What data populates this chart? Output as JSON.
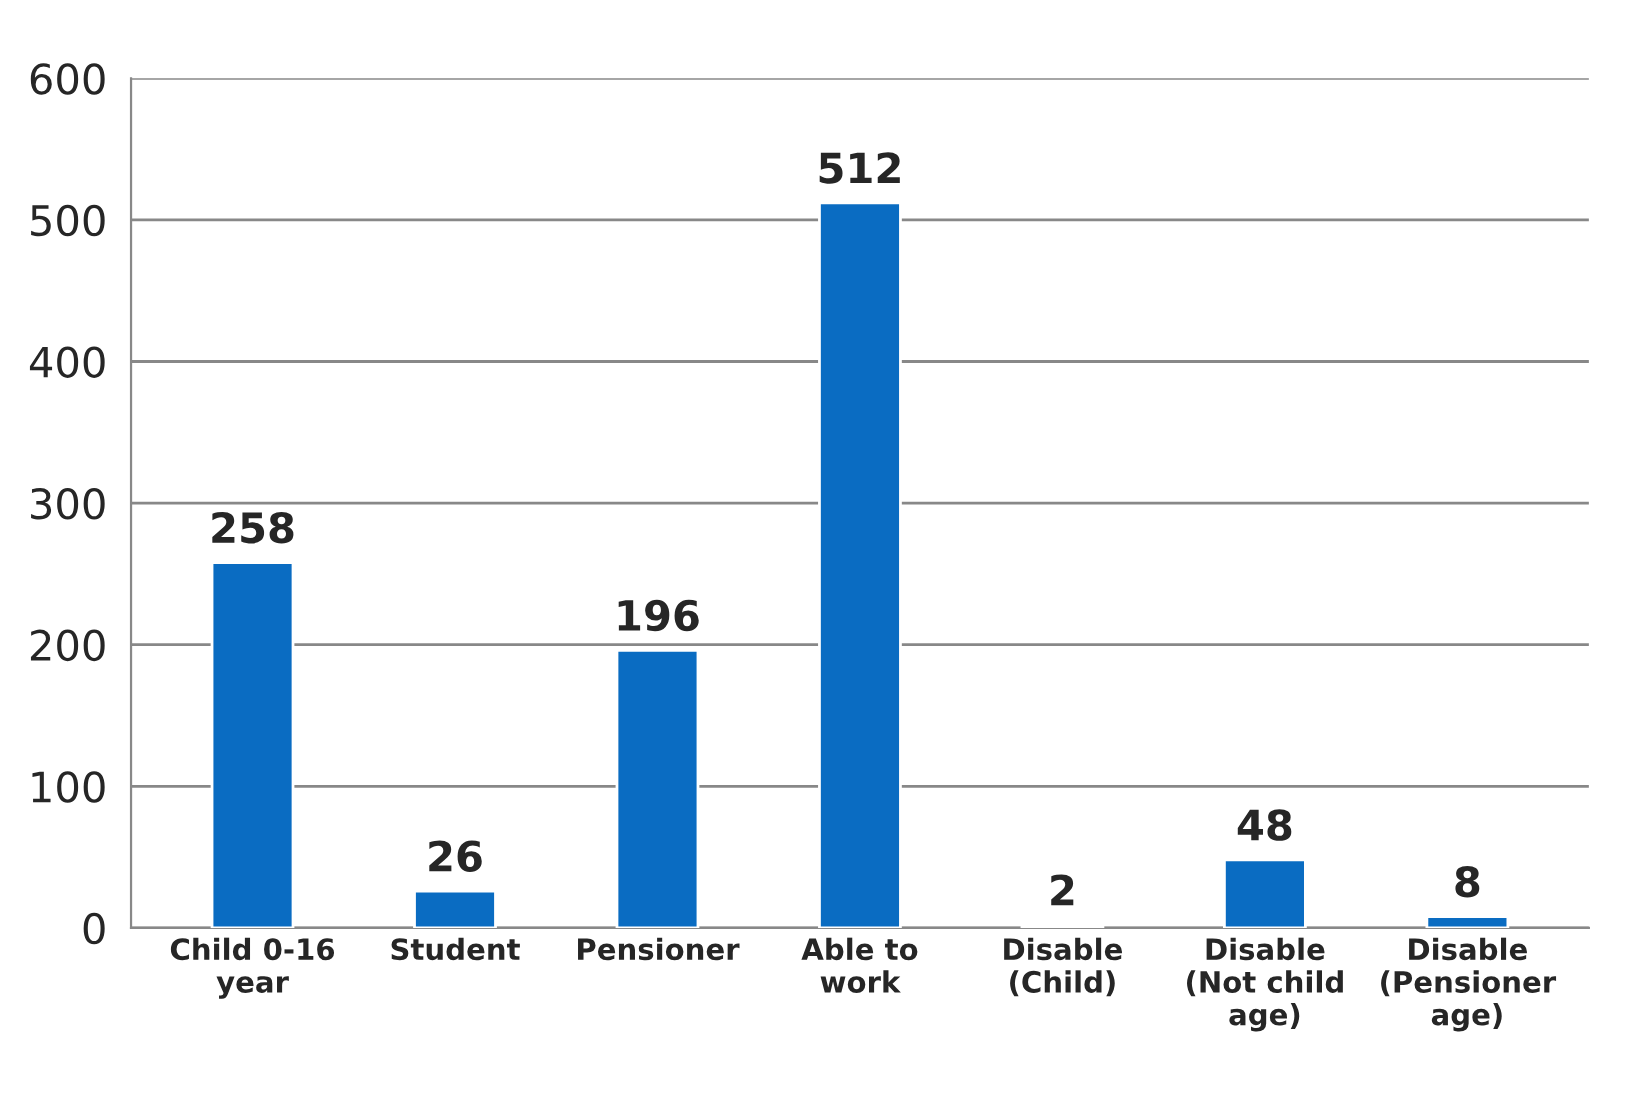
{
  "chart_data": {
    "type": "bar",
    "categories": [
      "Child 0-16\nyear",
      "Student",
      "Pensioner",
      "Able to\nwork",
      "Disable\n(Child)",
      "Disable\n(Not child\nage)",
      "Disable\n(Pensioner\nage)"
    ],
    "values": [
      258,
      26,
      196,
      512,
      2,
      48,
      8
    ],
    "color": "#0a6cc2",
    "ylim": [
      0,
      600
    ],
    "yticks": [
      0,
      100,
      200,
      300,
      400,
      500,
      600
    ],
    "grid": "y",
    "data_labels": true
  }
}
